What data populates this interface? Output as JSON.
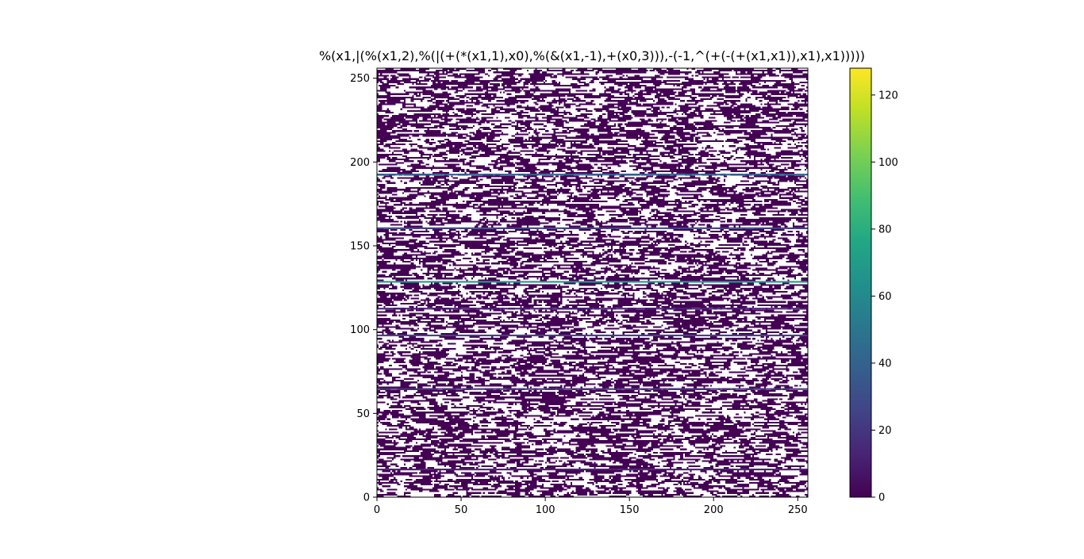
{
  "chart_data": {
    "type": "heatmap",
    "title": "%(x1,|(%(x1,2),%(|(+(*(x1,1),x0),%(&(x1,-1),+(x0,3))),-(-1,^(+(-(+(x1,x1)),x1),x1)))))",
    "xlabel": "",
    "ylabel": "",
    "xlim": [
      0,
      256
    ],
    "ylim": [
      0,
      256
    ],
    "x_ticks": [
      0,
      50,
      100,
      150,
      200,
      250
    ],
    "y_ticks": [
      0,
      50,
      100,
      150,
      200,
      250
    ],
    "grid": false,
    "colormap": "viridis",
    "masked_color": "#ffffff",
    "value_range": [
      0,
      128
    ],
    "colorbar": {
      "position": "right",
      "ticks": [
        0,
        20,
        40,
        60,
        80,
        100,
        120
      ]
    },
    "dominant_value": 0,
    "notable_rows": [
      {
        "y": 128,
        "value": 70
      },
      {
        "y": 192,
        "value": 40
      },
      {
        "y": 160,
        "value": 25
      },
      {
        "y": 96,
        "value": 25
      },
      {
        "y": 64,
        "value": 20
      },
      {
        "y": 112,
        "value": 12
      },
      {
        "y": 16,
        "value": 12
      }
    ]
  }
}
